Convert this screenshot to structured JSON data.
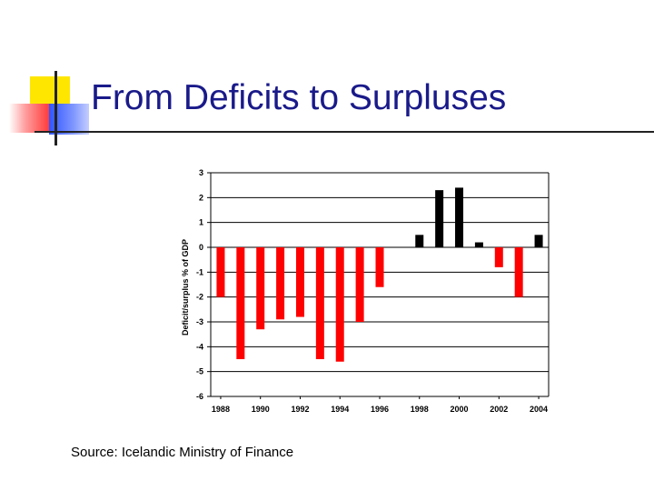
{
  "slide": {
    "title": "From Deficits to Surpluses",
    "source": "Source: Icelandic Ministry of Finance"
  },
  "colors": {
    "deficit": "#ff0000",
    "surplus": "#000000",
    "title": "#1a1a8a",
    "grid": "#000000"
  },
  "chart_data": {
    "type": "bar",
    "title": "",
    "xlabel": "",
    "ylabel": "Deficit/surplus % of GDP",
    "ylim": [
      -6,
      3
    ],
    "yticks": [
      "3",
      "2",
      "1",
      "0",
      "-1",
      "-2",
      "-3",
      "-4",
      "-5",
      "-6"
    ],
    "xtick_labels": [
      "1988",
      "1990",
      "1992",
      "1994",
      "1996",
      "1998",
      "2000",
      "2002",
      "2004"
    ],
    "grid": true,
    "legend": "none",
    "categories": [
      "1988",
      "1989",
      "1990",
      "1991",
      "1992",
      "1993",
      "1994",
      "1995",
      "1996",
      "1997",
      "1998",
      "1999",
      "2000",
      "2001",
      "2002",
      "2003",
      "2004"
    ],
    "values": [
      -2.0,
      -4.5,
      -3.3,
      -2.9,
      -2.8,
      -4.5,
      -4.6,
      -3.0,
      -1.6,
      0.0,
      0.5,
      2.3,
      2.4,
      0.2,
      -0.8,
      -2.0,
      0.5
    ]
  }
}
